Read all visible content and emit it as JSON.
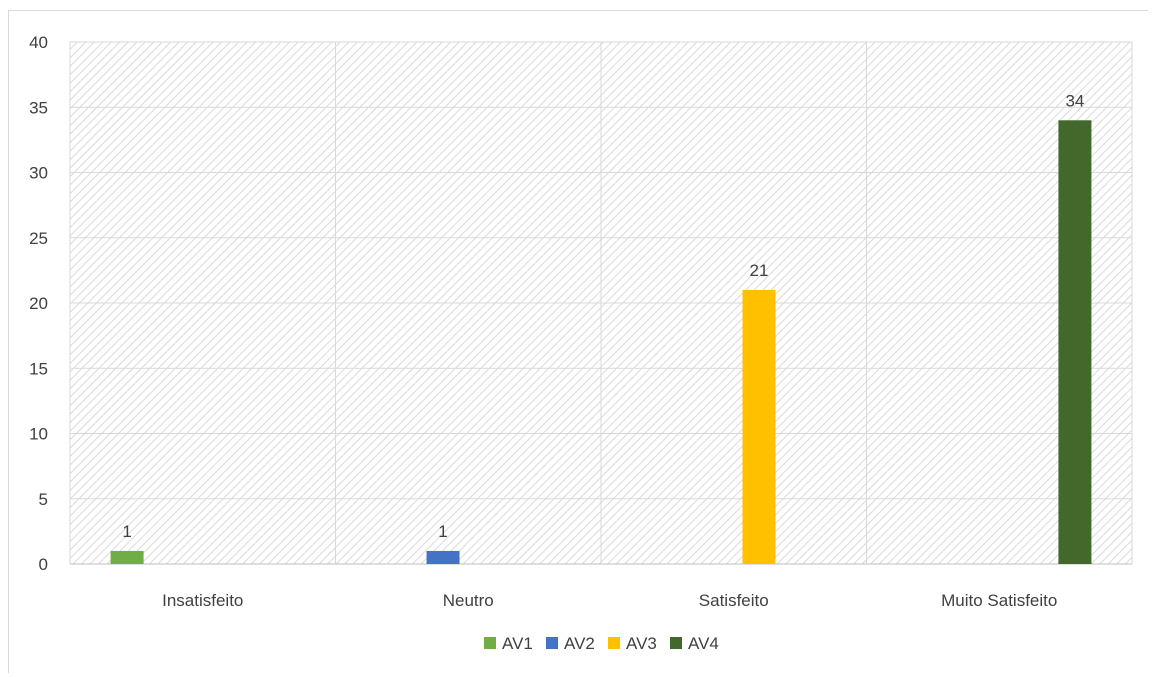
{
  "chart_data": {
    "type": "bar",
    "categories": [
      "Insatisfeito",
      "Neutro",
      "Satisfeito",
      "Muito Satisfeito"
    ],
    "series": [
      {
        "name": "AV1",
        "color": "#70ad47",
        "values": [
          1,
          null,
          null,
          null
        ]
      },
      {
        "name": "AV2",
        "color": "#4472c4",
        "values": [
          null,
          1,
          null,
          null
        ]
      },
      {
        "name": "AV3",
        "color": "#ffc000",
        "values": [
          null,
          null,
          21,
          null
        ]
      },
      {
        "name": "AV4",
        "color": "#43682b",
        "values": [
          null,
          null,
          null,
          34
        ]
      }
    ],
    "data_labels": [
      "1",
      "1",
      "21",
      "34"
    ],
    "ylim": [
      0,
      40
    ],
    "yticks": [
      "0",
      "5",
      "10",
      "15",
      "20",
      "25",
      "30",
      "35",
      "40"
    ],
    "grid": true,
    "plot_background": "diagonal-hatch",
    "legend_position": "bottom",
    "title": "",
    "xlabel": "",
    "ylabel": ""
  }
}
